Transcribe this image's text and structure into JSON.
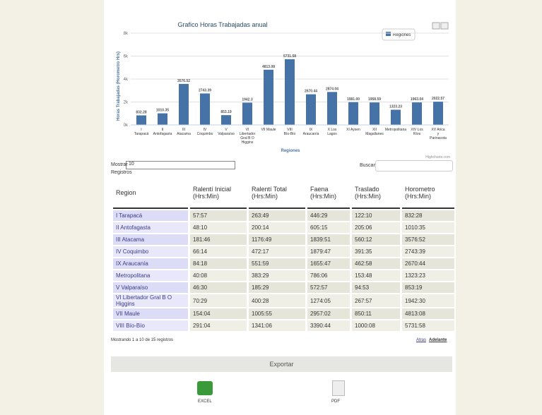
{
  "chart_data": {
    "type": "bar",
    "title": "Grafico Horas Trabajadas anual",
    "y_label": "Horas Trabajadas (Horometro Hrs)",
    "x_label": "Regiones",
    "legend": "Regiones",
    "legend_corner": "top-right",
    "credit": "Highcharts.com",
    "color": "#4572a7",
    "categories": [
      "I Tarapacá",
      "II Antofagasta",
      "III Atacama",
      "IV Coquimbo",
      "V Valparaíso",
      "VI Libertador Gral B O Higgins",
      "VII Maule",
      "VIII Bío-Bío",
      "IX Araucanía",
      "X Los Lagos",
      "XI Aysen",
      "XII Magallanes",
      "Metropolitana",
      "XIV Los Ríos",
      "XV Arica y Parinacota"
    ],
    "values": [
      832.28,
      1010.35,
      3576.52,
      2743.39,
      853.19,
      1942.3,
      4813.08,
      5731.58,
      2670.44,
      2874.04,
      1981,
      1958.59,
      1323.23,
      1963.04,
      2022.57
    ],
    "value_labels": [
      "832.28",
      "1010.35",
      "3576.52",
      "2743.39",
      "853.19",
      "1942.3",
      "4813.08",
      "5731.58",
      "2670.44",
      "2874.04",
      "1981.00",
      "1958.59",
      "1323.23",
      "1963.04",
      "2022.57"
    ],
    "ylim": [
      0,
      8000
    ],
    "yticks": [
      {
        "value": 0,
        "label": "0k"
      },
      {
        "value": 2000,
        "label": "2k"
      },
      {
        "value": 4000,
        "label": "4k"
      },
      {
        "value": 6000,
        "label": "6k"
      },
      {
        "value": 8000,
        "label": "8k"
      }
    ],
    "grid": true
  },
  "controls": {
    "show": "Mostrar",
    "page_size": "10",
    "records": "Registros",
    "search": "Buscar:",
    "info": "Mostrando 1 a 10 de 15 registros",
    "prev": "Atras",
    "next": "Adelante"
  },
  "table": {
    "headers": [
      "Region",
      "Ralentí Inicial (Hrs:Min)",
      "Ralentí Total (Hrs:Min)",
      "Faena (Hrs:Min)",
      "Traslado (Hrs:Min)",
      "Horometro (Hrs:Min)"
    ],
    "rows": [
      [
        "I Tarapacá",
        "57:57",
        "263:49",
        "446:29",
        "122:10",
        "832:28"
      ],
      [
        "II Antofagasta",
        "48:10",
        "200:14",
        "605:15",
        "205:06",
        "1010:35"
      ],
      [
        "III Atacama",
        "181:46",
        "1176:49",
        "1839:51",
        "560:12",
        "3576:52"
      ],
      [
        "IV Coquimbo",
        "66:14",
        "472:17",
        "1879:47",
        "391:35",
        "2743:39"
      ],
      [
        "IX Araucanía",
        "84:18",
        "551:59",
        "1655:47",
        "462:58",
        "2670:44"
      ],
      [
        "Metropolitana",
        "40:08",
        "383:29",
        "786:06",
        "153:48",
        "1323:23"
      ],
      [
        "V Valparaíso",
        "46:30",
        "185:29",
        "572:57",
        "94:53",
        "853:19"
      ],
      [
        "VI Libertador Gral B O Higgins",
        "70:29",
        "400:28",
        "1274:05",
        "267:57",
        "1942:30"
      ],
      [
        "VII Maule",
        "154:04",
        "1005:55",
        "2957:02",
        "850:11",
        "4813:08"
      ],
      [
        "VIII Bío-Bío",
        "291:04",
        "1341:06",
        "3390:44",
        "1000:08",
        "5731:58"
      ]
    ]
  },
  "export": {
    "title": "Exportar",
    "excel": "EXCEL",
    "pdf": "PDF"
  }
}
